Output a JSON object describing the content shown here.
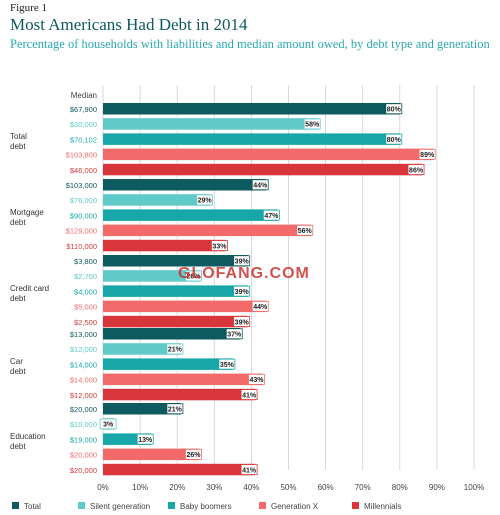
{
  "figure_label": "Figure 1",
  "title": "Most Americans Had Debt in 2014",
  "subtitle": "Percentage of households with liabilities and median amount owed, by debt type and generation",
  "median_header": "Median",
  "watermark": "GLOFANG.COM",
  "chart_data": {
    "type": "bar",
    "orientation": "horizontal",
    "categories": [
      "Total debt",
      "Mortgage debt",
      "Credit card debt",
      "Car debt",
      "Education debt"
    ],
    "x_ticks": [
      "0%",
      "10%",
      "20%",
      "30%",
      "40%",
      "50%",
      "60%",
      "70%",
      "80%",
      "90%",
      "100%"
    ],
    "xlim": [
      0,
      100
    ],
    "grid": true,
    "legend_position": "bottom",
    "series": [
      {
        "name": "Total",
        "color": "#0d5a5f",
        "values": [
          80,
          44,
          39,
          37,
          21
        ],
        "value_labels": [
          "80%",
          "44%",
          "39%",
          "37%",
          "21%"
        ],
        "medians": [
          "$67,900",
          "$103,000",
          "$3,800",
          "$13,000",
          "$20,000"
        ]
      },
      {
        "name": "Silent generation",
        "color": "#5fcac8",
        "values": [
          58,
          29,
          26,
          21,
          3
        ],
        "value_labels": [
          "58%",
          "29%",
          "26%",
          "21%",
          "3%"
        ],
        "medians": [
          "$30,000",
          "$76,000",
          "$2,700",
          "$12,000",
          "$10,000"
        ]
      },
      {
        "name": "Baby boomers",
        "color": "#18a7a8",
        "values": [
          80,
          47,
          39,
          35,
          13
        ],
        "value_labels": [
          "80%",
          "47%",
          "39%",
          "35%",
          "13%"
        ],
        "medians": [
          "$70,102",
          "$90,000",
          "$4,000",
          "$14,000",
          "$19,000"
        ]
      },
      {
        "name": "Generation X",
        "color": "#f26a6a",
        "values": [
          89,
          56,
          44,
          43,
          26
        ],
        "value_labels": [
          "89%",
          "56%",
          "44%",
          "43%",
          "26%"
        ],
        "medians": [
          "$103,800",
          "$129,000",
          "$5,000",
          "$14,000",
          "$20,000"
        ]
      },
      {
        "name": "Millennials",
        "color": "#d8363a",
        "values": [
          86,
          33,
          39,
          41,
          41
        ],
        "value_labels": [
          "86%",
          "33%",
          "39%",
          "41%",
          "41%"
        ],
        "medians": [
          "$46,000",
          "$110,000",
          "$2,500",
          "$12,000",
          "$20,000"
        ]
      }
    ]
  }
}
